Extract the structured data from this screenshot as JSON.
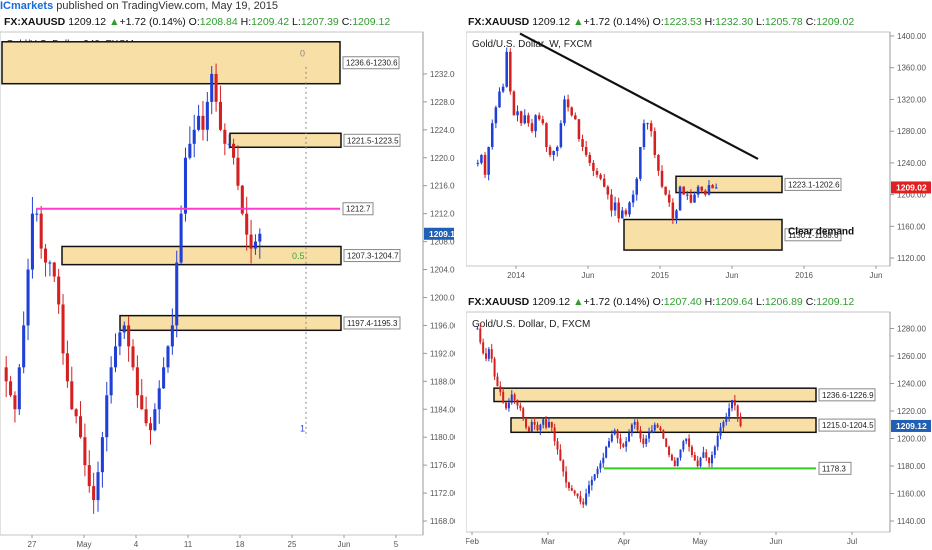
{
  "header": {
    "brand": "ICmarkets",
    "published": "published on TradingView.com, May 19, 2015"
  },
  "colors": {
    "bull": "#1f3fd6",
    "bear": "#d42020",
    "zone_fill": "#f8dfa6",
    "zone_border": "#111111",
    "magenta": "#ff3cd2",
    "green": "#33cc22",
    "trend": "#111111",
    "price_tag": "#1f5fb4",
    "price_tag_red": "#e02020"
  },
  "panels": {
    "h4": {
      "symbol": "FX:XAUUSD",
      "price": "1209.12",
      "change": "+1.72 (0.14%)",
      "o": "1208.84",
      "h": "1209.42",
      "l": "1207.39",
      "c": "1209.12",
      "title": "Gold/U.S. Dollar, 240, FXCM",
      "fib0": "0",
      "fib05": "0.5",
      "fib1": "1"
    },
    "weekly": {
      "symbol": "FX:XAUUSD",
      "price": "1209.12",
      "change": "+1.72 (0.14%)",
      "o": "1223.53",
      "h": "1232.30",
      "l": "1205.78",
      "c": "1209.02",
      "title": "Gold/U.S. Dollar, W, FXCM",
      "annotation": "Clear demand"
    },
    "daily": {
      "symbol": "FX:XAUUSD",
      "price": "1209.12",
      "change": "+1.72 (0.14%)",
      "o": "1207.40",
      "h": "1209.64",
      "l": "1206.89",
      "c": "1209.12",
      "title": "Gold/U.S. Dollar, D, FXCM"
    }
  },
  "chart_data": [
    {
      "type": "candlestick",
      "title": "Gold/U.S. Dollar, 240, FXCM",
      "x_ticks": [
        "27",
        "May",
        "4",
        "11",
        "18",
        "25",
        "Jun",
        "5"
      ],
      "y_ticks": [
        "1168.00",
        "1172.00",
        "1176.00",
        "1180.00",
        "1184.00",
        "1188.00",
        "1192.00",
        "1196.00",
        "1200.00",
        "1204.00",
        "1208.00",
        "1212.00",
        "1216.00",
        "1220.00",
        "1224.00",
        "1228.00",
        "1232.00"
      ],
      "ylim": [
        1166,
        1238
      ],
      "last_price": "1209.12",
      "zones": [
        {
          "label": "1236.6-1230.6",
          "low": 1230.6,
          "high": 1236.6
        },
        {
          "label": "1221.5-1223.5",
          "low": 1221.5,
          "high": 1223.5
        },
        {
          "label": "1207.3-1204.7",
          "low": 1204.7,
          "high": 1207.3
        },
        {
          "label": "1197.4-1195.3",
          "low": 1195.3,
          "high": 1197.4
        }
      ],
      "lines": [
        {
          "label": "1212.7",
          "value": 1212.7
        }
      ],
      "fib_levels": [
        "0",
        "0.5",
        "1"
      ],
      "trend_closes": [
        1188,
        1186,
        1184,
        1190,
        1196,
        1204,
        1212,
        1212,
        1207,
        1205,
        1205,
        1203,
        1199,
        1192,
        1188,
        1184,
        1183,
        1180,
        1176,
        1173,
        1171,
        1175,
        1180,
        1186,
        1190,
        1193,
        1195,
        1196,
        1193,
        1190,
        1186,
        1184,
        1182,
        1181,
        1184,
        1187,
        1190,
        1193,
        1196,
        1205,
        1212,
        1220,
        1222,
        1224,
        1226,
        1224,
        1228,
        1232,
        1228,
        1224,
        1222,
        1222,
        1220,
        1216,
        1212,
        1209,
        1207,
        1208,
        1209.12
      ]
    },
    {
      "type": "candlestick",
      "title": "Gold/U.S. Dollar, W, FXCM",
      "x_ticks": [
        "2014",
        "Jun",
        "2015",
        "Jun",
        "2016",
        "Jun"
      ],
      "y_ticks": [
        "1120.00",
        "1160.00",
        "1200.00",
        "1240.00",
        "1280.00",
        "1320.00",
        "1360.00",
        "1400.00"
      ],
      "ylim": [
        1110,
        1405
      ],
      "last_price": "1209.02",
      "zones": [
        {
          "label": "1223.1-1202.6",
          "low": 1202.6,
          "high": 1223.1
        },
        {
          "label": "1130.1-1168.6",
          "low": 1130.1,
          "high": 1168.6
        }
      ],
      "annotation": "Clear demand",
      "trend_closes": [
        1240,
        1250,
        1225,
        1260,
        1290,
        1310,
        1330,
        1336,
        1380,
        1330,
        1300,
        1305,
        1290,
        1300,
        1290,
        1280,
        1300,
        1295,
        1290,
        1260,
        1250,
        1255,
        1260,
        1290,
        1320,
        1310,
        1300,
        1295,
        1270,
        1260,
        1250,
        1240,
        1230,
        1225,
        1220,
        1210,
        1200,
        1180,
        1190,
        1170,
        1180,
        1175,
        1190,
        1200,
        1220,
        1260,
        1290,
        1290,
        1280,
        1250,
        1230,
        1210,
        1200,
        1190,
        1170,
        1180,
        1210,
        1200,
        1200,
        1190,
        1200,
        1210,
        1205,
        1200,
        1212,
        1208,
        1209
      ]
    },
    {
      "type": "candlestick",
      "title": "Gold/U.S. Dollar, D, FXCM",
      "x_ticks": [
        "Feb",
        "Mar",
        "Apr",
        "May",
        "Jun",
        "Jul"
      ],
      "y_ticks": [
        "1140.00",
        "1160.00",
        "1180.00",
        "1200.00",
        "1220.00",
        "1240.00",
        "1260.00",
        "1280.00"
      ],
      "ylim": [
        1132,
        1292
      ],
      "last_price": "1209.12",
      "zones": [
        {
          "label": "1236.6-1226.9",
          "low": 1226.9,
          "high": 1236.6
        },
        {
          "label": "1215.0-1204.5",
          "low": 1204.5,
          "high": 1215.0
        }
      ],
      "lines": [
        {
          "label": "1178.3",
          "value": 1178.3
        }
      ],
      "trend_closes": [
        1280,
        1270,
        1262,
        1258,
        1265,
        1258,
        1245,
        1238,
        1234,
        1226,
        1222,
        1226,
        1232,
        1228,
        1224,
        1222,
        1215,
        1208,
        1205,
        1212,
        1210,
        1206,
        1210,
        1214,
        1208,
        1212,
        1208,
        1198,
        1192,
        1184,
        1176,
        1168,
        1164,
        1162,
        1160,
        1158,
        1154,
        1152,
        1160,
        1166,
        1170,
        1174,
        1178,
        1182,
        1186,
        1194,
        1198,
        1203,
        1206,
        1200,
        1196,
        1194,
        1198,
        1204,
        1210,
        1212,
        1206,
        1200,
        1196,
        1200,
        1204,
        1206,
        1210,
        1208,
        1206,
        1200,
        1194,
        1188,
        1184,
        1180,
        1186,
        1192,
        1198,
        1200,
        1194,
        1188,
        1184,
        1180,
        1186,
        1190,
        1186,
        1182,
        1188,
        1194,
        1202,
        1208,
        1212,
        1216,
        1222,
        1228,
        1224,
        1216,
        1209
      ]
    }
  ]
}
